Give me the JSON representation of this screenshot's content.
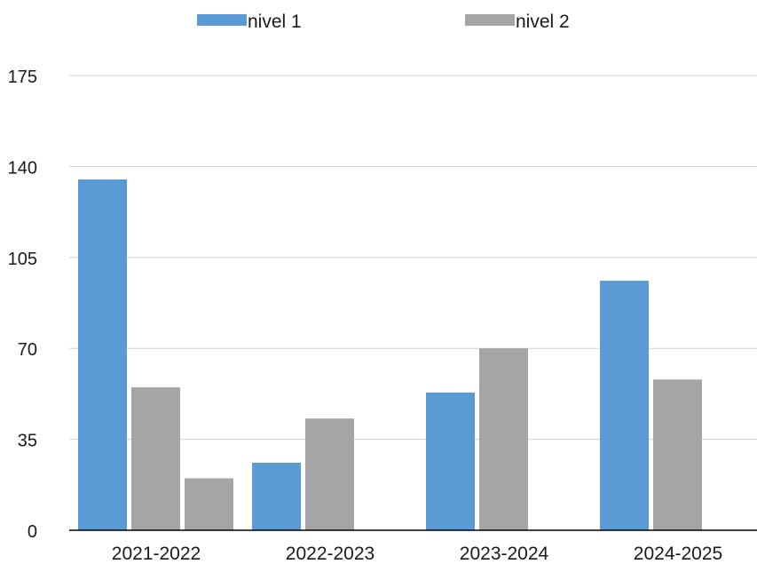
{
  "chart_data": {
    "type": "bar",
    "title": "",
    "xlabel": "",
    "ylabel": "",
    "categories": [
      "2021-2022",
      "2022-2023",
      "2023-2024",
      "2024-2025"
    ],
    "series": [
      {
        "name": "nivel 1",
        "color": "#5B9BD5",
        "values": [
          135,
          26,
          53,
          96
        ]
      },
      {
        "name": "nivel 2",
        "color": "#A5A5A5",
        "values": [
          55,
          43,
          70,
          58
        ]
      }
    ],
    "extra_bars": [
      {
        "category": "2021-2022",
        "series_color": "#A5A5A5",
        "value": 20
      }
    ],
    "ylim": [
      0,
      175
    ],
    "y_ticks": [
      0,
      35,
      70,
      105,
      140,
      175
    ],
    "grid": true,
    "legend_position": "top"
  }
}
